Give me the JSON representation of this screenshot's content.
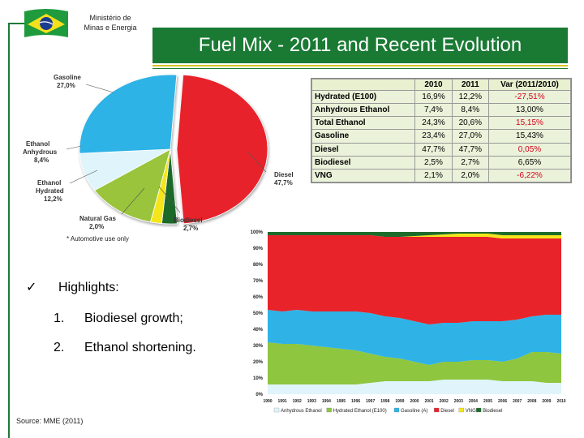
{
  "header": {
    "ministry_line1": "Ministério de",
    "ministry_line2": "Minas e Energia",
    "title": "Fuel Mix - 2011 and Recent Evolution"
  },
  "pie": {
    "footnote": "* Automotive use only",
    "slices": [
      {
        "name": "Diesel",
        "value": "47,7%",
        "color": "#e8232a"
      },
      {
        "name": "Biodiesel",
        "value": "2,7%",
        "color": "#1d6b2b"
      },
      {
        "name": "Natural Gas",
        "value": "2,0%",
        "color": "#f5e61c"
      },
      {
        "name": "Ethanol Hydrated",
        "value": "12,2%",
        "color": "#9ac43a"
      },
      {
        "name": "Ethanol Anhydrous",
        "value": "8,4%",
        "color": "#dff5fb"
      },
      {
        "name": "Gasoline",
        "value": "27,0%",
        "color": "#2fb3e6"
      }
    ],
    "labels": {
      "gasoline_name": "Gasoline",
      "gasoline_val": "27,0%",
      "ethanol_anh_1": "Ethanol",
      "ethanol_anh_2": "Anhydrous",
      "ethanol_anh_val": "8,4%",
      "ethanol_hyd_1": "Ethanol",
      "ethanol_hyd_2": "Hydrated",
      "ethanol_hyd_val": "12,2%",
      "natgas_name": "Natural Gas",
      "natgas_val": "2,0%",
      "biodiesel_name": "Biodiesel",
      "biodiesel_val": "2,7%",
      "diesel_name": "Diesel",
      "diesel_val": "47,7%"
    }
  },
  "table": {
    "headers": [
      "",
      "2010",
      "2011",
      "Var (2011/2010)"
    ],
    "rows": [
      {
        "label": "Hydrated (E100)",
        "y2010": "16,9%",
        "y2011": "12,2%",
        "var": "-27,51%",
        "var_red": true
      },
      {
        "label": "Anhydrous Ethanol",
        "y2010": "7,4%",
        "y2011": "8,4%",
        "var": "13,00%",
        "var_red": false
      },
      {
        "label": "Total Ethanol",
        "y2010": "24,3%",
        "y2011": "20,6%",
        "var": "15,15%",
        "var_red": true
      },
      {
        "label": "Gasoline",
        "y2010": "23,4%",
        "y2011": "27,0%",
        "var": "15,43%",
        "var_red": false
      },
      {
        "label": "Diesel",
        "y2010": "47,7%",
        "y2011": "47,7%",
        "var": "0,05%",
        "var_red": true
      },
      {
        "label": "Biodiesel",
        "y2010": "2,5%",
        "y2011": "2,7%",
        "var": "6,65%",
        "var_red": false
      },
      {
        "label": "VNG",
        "y2010": "2,1%",
        "y2011": "2,0%",
        "var": "-6,22%",
        "var_red": true
      }
    ]
  },
  "highlights": {
    "title": "Highlights:",
    "items": [
      {
        "num": "1.",
        "text": "Biodiesel growth;"
      },
      {
        "num": "2.",
        "text": "Ethanol shortening."
      }
    ]
  },
  "source": "Source: MME (2011)",
  "chart_data": {
    "type": "area",
    "title": "",
    "x": [
      "1990",
      "1991",
      "1992",
      "1993",
      "1994",
      "1995",
      "1996",
      "1997",
      "1998",
      "1999",
      "2000",
      "2001",
      "2002",
      "2003",
      "2004",
      "2005",
      "2006",
      "2007",
      "2008",
      "2009",
      "2010"
    ],
    "y_ticks": [
      "0%",
      "10%",
      "20%",
      "30%",
      "40%",
      "50%",
      "60%",
      "70%",
      "80%",
      "90%",
      "100%"
    ],
    "ylim": [
      0,
      100
    ],
    "series": [
      {
        "name": "Anhydrous Ethanol",
        "color": "#dff5fb",
        "values": [
          6,
          6,
          6,
          6,
          6,
          6,
          6,
          7,
          8,
          8,
          8,
          8,
          9,
          9,
          9,
          9,
          8,
          8,
          8,
          7,
          7
        ]
      },
      {
        "name": "Hydrated Ethanol (E100)",
        "color": "#8ec63f",
        "values": [
          26,
          25,
          25,
          24,
          23,
          22,
          21,
          18,
          15,
          14,
          12,
          10,
          11,
          11,
          12,
          12,
          12,
          14,
          18,
          19,
          18
        ]
      },
      {
        "name": "Gasoline (A)",
        "color": "#2fb3e6",
        "values": [
          20,
          20,
          21,
          21,
          22,
          23,
          24,
          25,
          25,
          25,
          25,
          25,
          24,
          24,
          24,
          24,
          25,
          24,
          22,
          23,
          24
        ]
      },
      {
        "name": "Diesel",
        "color": "#e8232a",
        "values": [
          46,
          47,
          46,
          47,
          47,
          47,
          47,
          48,
          49,
          50,
          52,
          54,
          53,
          53,
          52,
          52,
          51,
          50,
          48,
          47,
          47
        ]
      },
      {
        "name": "VNG",
        "color": "#f5e61c",
        "values": [
          0,
          0,
          0,
          0,
          0,
          0,
          0,
          0,
          0,
          0,
          0.5,
          1,
          1.5,
          2,
          2,
          2,
          2,
          2,
          2,
          2,
          2
        ]
      },
      {
        "name": "Biodiesel",
        "color": "#1d6b2b",
        "values": [
          2,
          2,
          2,
          2,
          2,
          2,
          2,
          2,
          3,
          3,
          2.5,
          2,
          1.5,
          1,
          1,
          1,
          2,
          2,
          2,
          2,
          2
        ]
      }
    ]
  }
}
